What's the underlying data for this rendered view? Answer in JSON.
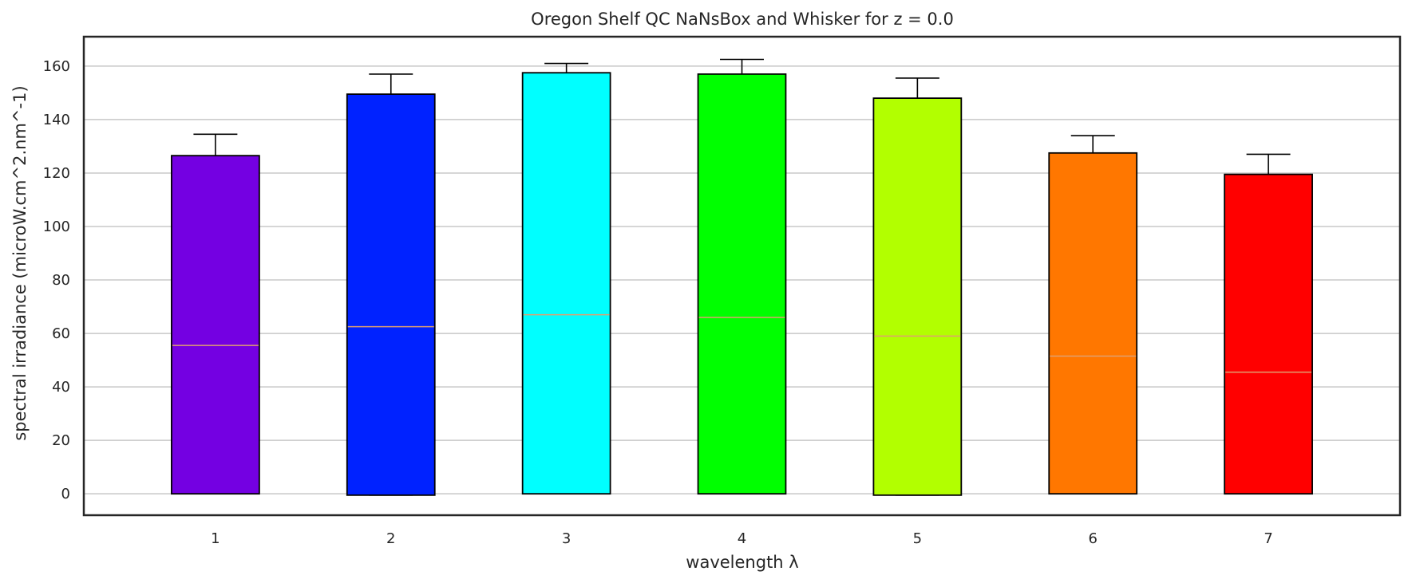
{
  "chart_data": {
    "type": "box",
    "title": "Oregon Shelf QC NaNsBox and Whisker for z = 0.0",
    "xlabel": "wavelength λ",
    "ylabel": "spectral irradiance (microW.cm^2.nm^-1)",
    "ylim": [
      -8,
      171
    ],
    "yticks": [
      0,
      20,
      40,
      60,
      80,
      100,
      120,
      140,
      160
    ],
    "grid": "horizontal",
    "categories": [
      "1",
      "2",
      "3",
      "4",
      "5",
      "6",
      "7"
    ],
    "boxes": [
      {
        "label": "1",
        "whisker_low": 0,
        "q1": 0,
        "median": 55.5,
        "q3": 126.5,
        "whisker_high": 134.5,
        "color": "#7400e2"
      },
      {
        "label": "2",
        "whisker_low": -0.5,
        "q1": -0.5,
        "median": 62.5,
        "q3": 149.5,
        "whisker_high": 157,
        "color": "#0022ff"
      },
      {
        "label": "3",
        "whisker_low": 0,
        "q1": 0,
        "median": 67,
        "q3": 157.5,
        "whisker_high": 161,
        "color": "#00ffff"
      },
      {
        "label": "4",
        "whisker_low": 0,
        "q1": 0,
        "median": 66,
        "q3": 157,
        "whisker_high": 162.5,
        "color": "#00ff00"
      },
      {
        "label": "5",
        "whisker_low": -0.5,
        "q1": -0.5,
        "median": 59,
        "q3": 148,
        "whisker_high": 155.5,
        "color": "#b2ff00"
      },
      {
        "label": "6",
        "whisker_low": 0,
        "q1": 0,
        "median": 51.5,
        "q3": 127.5,
        "whisker_high": 134,
        "color": "#ff7700"
      },
      {
        "label": "7",
        "whisker_low": 0,
        "q1": 0,
        "median": 45.5,
        "q3": 119.5,
        "whisker_high": 127,
        "color": "#ff0000"
      }
    ],
    "median_color": "#e0a070"
  }
}
